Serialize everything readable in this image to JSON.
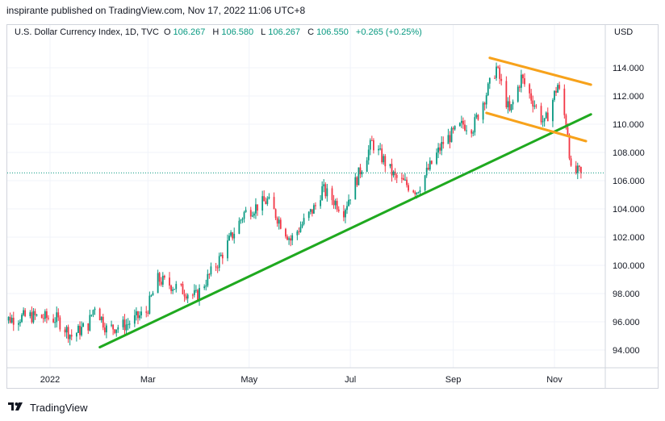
{
  "header": {
    "published_text": "inspirante published on TradingView.com, Nov 17, 2022 11:06 UTC+8"
  },
  "legend": {
    "symbol": "U.S. Dollar Currency Index, 1D, TVC",
    "o_label": "O",
    "o_value": "106.267",
    "h_label": "H",
    "h_value": "106.580",
    "l_label": "L",
    "l_value": "106.267",
    "c_label": "C",
    "c_value": "106.550",
    "change": "+0.265 (+0.25%)"
  },
  "currency_label": "USD",
  "footer": {
    "brand": "TradingView"
  },
  "colors": {
    "up": "#089981",
    "down": "#f23645",
    "trendline": "#1fa91f",
    "channel": "#f7a21b",
    "grid": "#f0f3fa",
    "last_price": "#089981"
  },
  "chart_data": {
    "type": "candlestick",
    "symbol": "DXY",
    "ylim": [
      92.8,
      115.5
    ],
    "y_ticks": [
      "94.000",
      "96.000",
      "98.000",
      "100.000",
      "102.000",
      "104.000",
      "106.000",
      "108.000",
      "110.000",
      "112.000",
      "114.000"
    ],
    "x_ticks": [
      "2022",
      "Mar",
      "May",
      "Jul",
      "Sep",
      "Nov"
    ],
    "last_price": 106.55,
    "trend_path": [
      [
        "2021-12-01",
        96.1
      ],
      [
        "2021-12-20",
        96.4
      ],
      [
        "2022-01-05",
        96.2
      ],
      [
        "2022-01-14",
        95.0
      ],
      [
        "2022-01-24",
        95.8
      ],
      [
        "2022-01-28",
        97.2
      ],
      [
        "2022-02-04",
        95.5
      ],
      [
        "2022-02-16",
        95.8
      ],
      [
        "2022-02-28",
        96.7
      ],
      [
        "2022-03-07",
        99.0
      ],
      [
        "2022-03-15",
        98.6
      ],
      [
        "2022-03-30",
        97.8
      ],
      [
        "2022-04-12",
        100.2
      ],
      [
        "2022-04-28",
        103.7
      ],
      [
        "2022-05-12",
        104.6
      ],
      [
        "2022-05-26",
        101.8
      ],
      [
        "2022-06-10",
        104.2
      ],
      [
        "2022-06-14",
        105.4
      ],
      [
        "2022-06-27",
        103.9
      ],
      [
        "2022-07-14",
        108.7
      ],
      [
        "2022-07-28",
        106.2
      ],
      [
        "2022-08-10",
        105.3
      ],
      [
        "2022-08-26",
        108.7
      ],
      [
        "2022-09-07",
        110.0
      ],
      [
        "2022-09-13",
        109.8
      ],
      [
        "2022-09-27",
        114.0
      ],
      [
        "2022-10-05",
        110.8
      ],
      [
        "2022-10-12",
        113.3
      ],
      [
        "2022-10-26",
        110.0
      ],
      [
        "2022-11-03",
        112.8
      ],
      [
        "2022-11-09",
        109.5
      ],
      [
        "2022-11-11",
        106.6
      ],
      [
        "2022-11-17",
        106.55
      ]
    ],
    "drawings": [
      {
        "name": "uptrend-line",
        "color": "green",
        "from": [
          "2022-01-31",
          94.2
        ],
        "to": [
          "2022-11-23",
          110.7
        ]
      },
      {
        "name": "channel-upper",
        "color": "orange",
        "from": [
          "2022-09-23",
          114.7
        ],
        "to": [
          "2022-11-23",
          112.8
        ]
      },
      {
        "name": "channel-lower",
        "color": "orange",
        "from": [
          "2022-09-21",
          110.8
        ],
        "to": [
          "2022-11-20",
          108.8
        ]
      }
    ]
  }
}
